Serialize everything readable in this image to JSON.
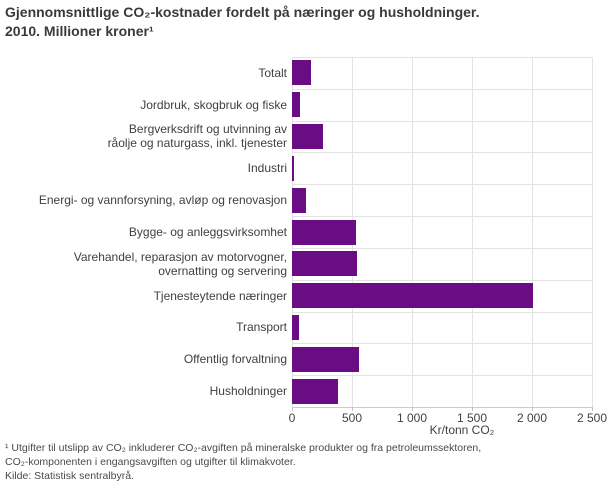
{
  "title": "Gjennomsnittlige CO₂-kostnader fordelt på næringer og husholdninger.\n2010. Millioner kroner¹",
  "footnote": "¹ Utgifter til utslipp av CO₂ inkluderer CO₂-avgiften på mineralske produkter og fra petroleumssektoren,\nCO₂-komponenten i engangsavgiften og utgifter til klimakvoter.\nKilde: Statistisk sentralbyrå.",
  "chart_data": {
    "type": "bar",
    "orientation": "horizontal",
    "title": "Gjennomsnittlige CO₂-kostnader fordelt på næringer og husholdninger. 2010. Millioner kroner¹",
    "categories": [
      "Totalt",
      "Jordbruk, skogbruk og fiske",
      "Bergverksdrift og utvinning av\nråolje og naturgass, inkl. tjenester",
      "Industri",
      "Energi- og vannforsyning, avløp og renovasjon",
      "Bygge- og anleggsvirksomhet",
      "Varehandel, reparasjon av motorvogner,\novernatting og servering",
      "Tjenesteytende næringer",
      "Transport",
      "Offentlig forvaltning",
      "Husholdninger"
    ],
    "values": [
      155,
      65,
      260,
      20,
      120,
      535,
      545,
      2010,
      55,
      555,
      385
    ],
    "xlabel": "Kr/tonn CO₂",
    "ylabel": "",
    "xlim": [
      0,
      2500
    ],
    "xticks": [
      {
        "value": 0,
        "label": "0"
      },
      {
        "value": 500,
        "label": "500"
      },
      {
        "value": 1000,
        "label": "1 000"
      },
      {
        "value": 1500,
        "label": "1 500"
      },
      {
        "value": 2000,
        "label": "2 000"
      },
      {
        "value": 2500,
        "label": "2 500"
      }
    ],
    "grid": true,
    "legend": "none",
    "colors": {
      "bar": "#6a0d85",
      "gridline": "#e3e3e3",
      "axis_line": "#cccccc",
      "tick_mark": "#c4c4c4"
    }
  }
}
